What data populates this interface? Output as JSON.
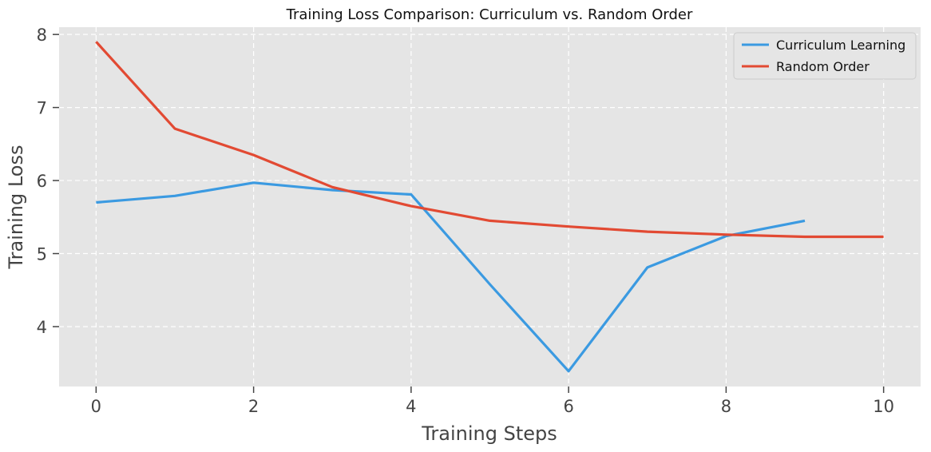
{
  "chart_data": {
    "type": "line",
    "title": "Training Loss Comparison: Curriculum vs. Random Order",
    "xlabel": "Training Steps",
    "ylabel": "Training Loss",
    "xlim": [
      -0.47,
      10.47
    ],
    "ylim": [
      3.18,
      8.1
    ],
    "xticks": [
      0,
      2,
      4,
      6,
      8,
      10
    ],
    "yticks": [
      4,
      5,
      6,
      7,
      8
    ],
    "grid": true,
    "legend_position": "top-right",
    "background_color": "#e5e5e5",
    "series": [
      {
        "name": "Curriculum Learning",
        "color": "#3b9ae1",
        "x": [
          0,
          1,
          2,
          3,
          4,
          5,
          6,
          7,
          8,
          9
        ],
        "y": [
          5.7,
          5.79,
          5.97,
          5.87,
          5.81,
          4.58,
          3.39,
          4.81,
          5.24,
          5.45
        ]
      },
      {
        "name": "Random Order",
        "color": "#e24a33",
        "x": [
          0,
          1,
          2,
          3,
          4,
          5,
          6,
          7,
          8,
          9,
          10
        ],
        "y": [
          7.9,
          6.71,
          6.35,
          5.91,
          5.65,
          5.45,
          5.37,
          5.3,
          5.26,
          5.23,
          5.23
        ]
      }
    ]
  }
}
